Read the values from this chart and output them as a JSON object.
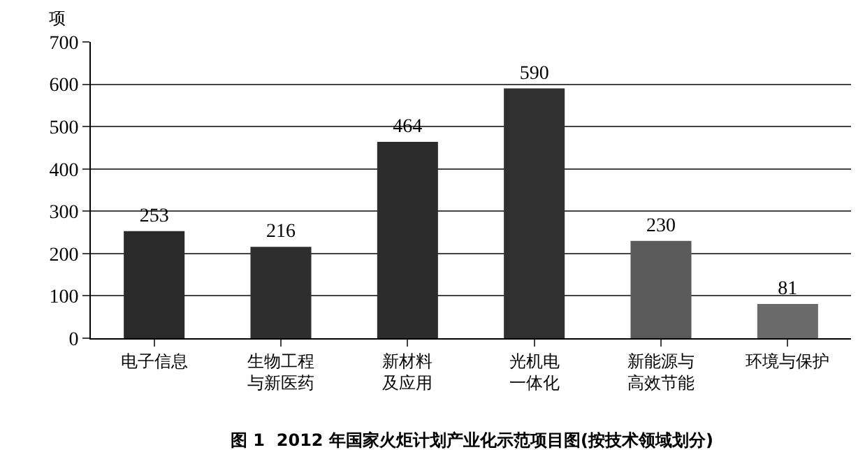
{
  "chart_data": {
    "type": "bar",
    "title": "图 1  2012 年国家火炬计划产业化示范项目图(按技术领域划分)",
    "ylabel": "项",
    "categories": [
      "电子信息",
      "生物工程与新医药",
      "新材料及应用",
      "光机电一体化",
      "新能源与高效节能",
      "环境与保护"
    ],
    "values": [
      253,
      216,
      464,
      590,
      230,
      81
    ],
    "colors": [
      "#2a2a2a",
      "#2e2e2e",
      "#2c2c2c",
      "#303030",
      "#5a5a5a",
      "#6a6a6a"
    ],
    "ylim": [
      0,
      700
    ],
    "yticks": [
      0,
      100,
      200,
      300,
      400,
      500,
      600,
      700
    ],
    "grid": "y",
    "data_labels": true
  }
}
